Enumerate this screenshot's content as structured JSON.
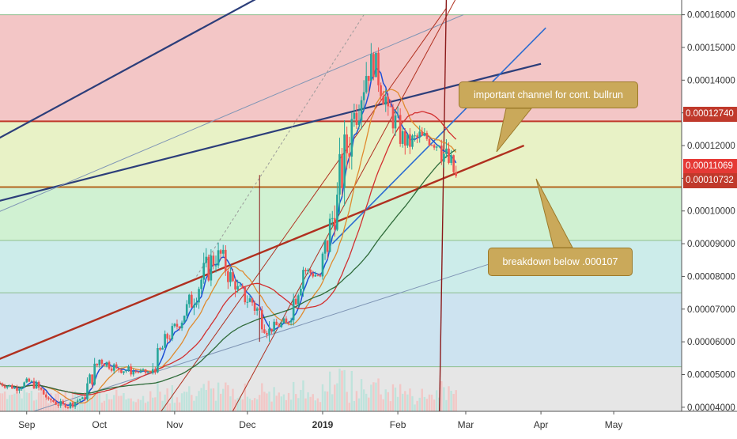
{
  "chart_data": {
    "type": "line",
    "title": "",
    "xlabel": "",
    "ylabel": "",
    "x_ticks": [
      "Sep",
      "Oct",
      "Nov",
      "Dec",
      "2019",
      "Feb",
      "Mar",
      "Apr",
      "May"
    ],
    "y_ticks": [
      "0.00004000",
      "0.00005000",
      "0.00006000",
      "0.00007000",
      "0.00008000",
      "0.00009000",
      "0.00010000",
      "0.00011000",
      "0.00012000",
      "0.00013000",
      "0.00014000",
      "0.00015000",
      "0.00016000"
    ],
    "ylim": [
      3.15e-05,
      0.0001645
    ],
    "xlim": [
      "2018-08-21",
      "2019-05-29"
    ],
    "grid": false,
    "series": [
      {
        "candles": [
          [
            "2018-08-21",
            4.75e-05,
            4.95e-05,
            4.5e-05,
            4.6e-05
          ],
          [
            "2018-08-28",
            4.6e-05,
            5e-05,
            4.4e-05,
            4.8e-05
          ],
          [
            "2018-09-04",
            4.8e-05,
            4.9e-05,
            4.15e-05,
            4.25e-05
          ],
          [
            "2018-09-11",
            4.25e-05,
            4.4e-05,
            3.85e-05,
            4e-05
          ],
          [
            "2018-09-18",
            4e-05,
            4.45e-05,
            3.95e-05,
            4.3e-05
          ],
          [
            "2018-09-25",
            4.3e-05,
            5.6e-05,
            4.2e-05,
            5.45e-05
          ],
          [
            "2018-10-02",
            5.45e-05,
            5.7e-05,
            5e-05,
            5.2e-05
          ],
          [
            "2018-10-09",
            5.2e-05,
            5.45e-05,
            4.8e-05,
            5.1e-05
          ],
          [
            "2018-10-16",
            5.1e-05,
            5.3e-05,
            4.9e-05,
            5.05e-05
          ],
          [
            "2018-10-23",
            5.05e-05,
            6.4e-05,
            5e-05,
            6.1e-05
          ],
          [
            "2018-10-30",
            6.1e-05,
            7e-05,
            6e-05,
            6.8e-05
          ],
          [
            "2018-11-06",
            6.8e-05,
            8.4e-05,
            6.6e-05,
            7.9e-05
          ],
          [
            "2018-11-13",
            7.9e-05,
            9.9e-05,
            7.7e-05,
            8.8e-05
          ],
          [
            "2018-11-20",
            8.8e-05,
            9e-05,
            7.3e-05,
            7.6e-05
          ],
          [
            "2018-11-27",
            7.6e-05,
            8.2e-05,
            6.8e-05,
            7.2e-05
          ],
          [
            "2018-12-04",
            7.2e-05,
            7.4e-05,
            5.8e-05,
            6.4e-05
          ],
          [
            "2018-12-11",
            6.4e-05,
            6.8e-05,
            6.1e-05,
            6.6e-05
          ],
          [
            "2018-12-18",
            6.6e-05,
            8.5e-05,
            6.5e-05,
            8.2e-05
          ],
          [
            "2018-12-25",
            8.2e-05,
            8.4e-05,
            7.6e-05,
            8e-05
          ],
          [
            "2019-01-01",
            8e-05,
            0.000112,
            7.9e-05,
            0.000105
          ],
          [
            "2019-01-08",
            0.000105,
            0.000135,
            9.3e-05,
            0.00013
          ],
          [
            "2019-01-15",
            0.00013,
            0.000159,
            0.000125,
            0.000148
          ],
          [
            "2019-01-22",
            0.000148,
            0.00015,
            0.000128,
            0.000132
          ],
          [
            "2019-01-29",
            0.000132,
            0.000135,
            0.000115,
            0.00012
          ],
          [
            "2019-02-05",
            0.00012,
            0.000129,
            0.000114,
            0.000123
          ],
          [
            "2019-02-12",
            0.000123,
            0.000126,
            0.000116,
            0.00012
          ],
          [
            "2019-02-19",
            0.00012,
            0.000128,
            0.000108,
            0.0001107
          ]
        ],
        "color_up": "#26a69a",
        "color_down": "#ef5350"
      }
    ],
    "annotations": [
      "important channel for cont. bullrun",
      "breakdown below .000107"
    ],
    "price_labels": [
      {
        "text": "0.00012740",
        "color": "#c0392b"
      },
      {
        "text": "0.00011069",
        "color": "#e53935"
      },
      {
        "text": "0.00010732",
        "color": "#c0392b"
      }
    ],
    "horizontal_levels": [
      {
        "value": 0.0001274,
        "color": "#c0392b"
      },
      {
        "value": 0.0001073,
        "color": "#b5651d"
      }
    ],
    "colors": {
      "band_top": "#f3c6c6",
      "band_2": "#e8f2c6",
      "band_3": "#d0f1d2",
      "band_4": "#ccecea",
      "band_5": "#cde3f0",
      "band_bottom": "#e6e6e6",
      "channel_blue": "#2c3e7a",
      "channel_red": "#b0301f",
      "callout_fill": "#caa95a"
    }
  }
}
